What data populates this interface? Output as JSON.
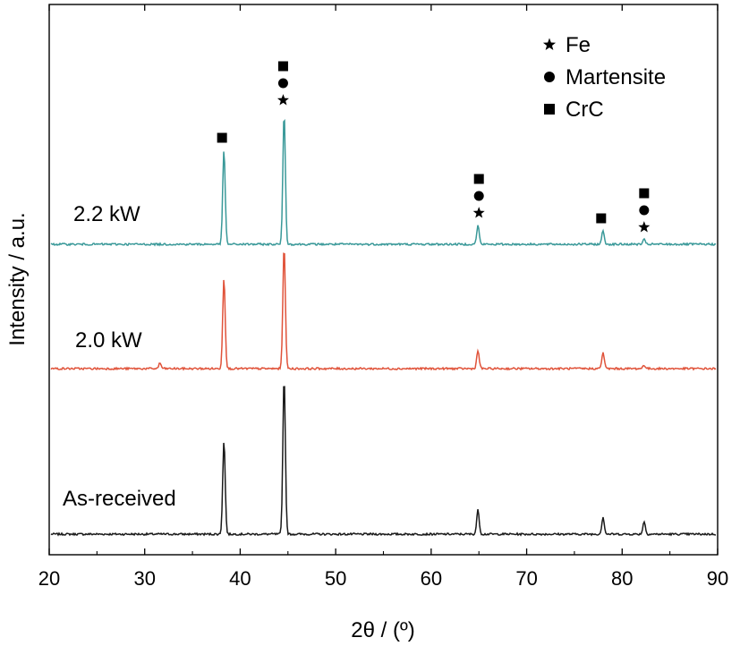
{
  "chart_data": {
    "type": "line",
    "xlabel": "2θ / (º)",
    "ylabel": "Intensity / a.u.",
    "xlim": [
      20,
      90
    ],
    "x_ticks": [
      20,
      30,
      40,
      50,
      60,
      70,
      80,
      90
    ],
    "y_ticks_labeled": false,
    "grid": false,
    "legend": {
      "placement": "top-right",
      "entries": [
        {
          "symbol": "star",
          "label": "Fe"
        },
        {
          "symbol": "circle",
          "label": "Martensite"
        },
        {
          "symbol": "square",
          "label": "CrC"
        }
      ]
    },
    "series": [
      {
        "name": "As-received",
        "color": "#1a1a1a",
        "baseline": 0,
        "peaks": [
          {
            "x": 38.3,
            "height": 104
          },
          {
            "x": 44.6,
            "height": 176
          },
          {
            "x": 64.9,
            "height": 27
          },
          {
            "x": 78.0,
            "height": 19
          },
          {
            "x": 82.3,
            "height": 14
          }
        ]
      },
      {
        "name": "2.0 kW",
        "color": "#e0533a",
        "baseline": 185,
        "peaks": [
          {
            "x": 31.6,
            "height": 6
          },
          {
            "x": 38.3,
            "height": 101
          },
          {
            "x": 44.6,
            "height": 137
          },
          {
            "x": 64.9,
            "height": 20
          },
          {
            "x": 78.0,
            "height": 18
          },
          {
            "x": 82.3,
            "height": 4
          }
        ]
      },
      {
        "name": "2.2 kW",
        "color": "#3a9999",
        "baseline": 324,
        "peaks": [
          {
            "x": 38.3,
            "height": 105
          },
          {
            "x": 44.6,
            "height": 147
          },
          {
            "x": 64.9,
            "height": 21
          },
          {
            "x": 78.0,
            "height": 15
          },
          {
            "x": 82.3,
            "height": 5
          }
        ],
        "annotations": [
          {
            "x": 38.1,
            "symbols": [
              "square"
            ]
          },
          {
            "x": 44.5,
            "symbols": [
              "square",
              "circle",
              "star"
            ]
          },
          {
            "x": 65.0,
            "symbols": [
              "square",
              "circle",
              "star"
            ]
          },
          {
            "x": 77.8,
            "symbols": [
              "square"
            ]
          },
          {
            "x": 82.3,
            "symbols": [
              "square",
              "circle",
              "star"
            ]
          }
        ]
      }
    ]
  }
}
